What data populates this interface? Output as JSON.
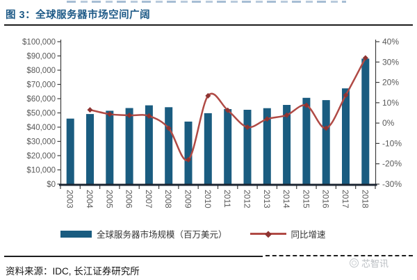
{
  "page": {
    "title": "图 3：全球服务器市场空间广阔",
    "source": "资料来源：IDC, 长江证券研究所",
    "watermark": "芯智讯"
  },
  "legend": {
    "bar_label": "全球服务器市场规模（百万美元）",
    "line_label": "同比增速"
  },
  "chart_data": {
    "type": "combo-bar-line",
    "title": "全球服务器市场空间广阔",
    "categories": [
      "2003",
      "2004",
      "2005",
      "2006",
      "2007",
      "2008",
      "2009",
      "2010",
      "2011",
      "2012",
      "2013",
      "2014",
      "2015",
      "2016",
      "2017",
      "2018"
    ],
    "series": [
      {
        "name": "全球服务器市场规模（百万美元）",
        "type": "bar",
        "axis": "left",
        "unit": "百万美元",
        "values": [
          46000,
          49200,
          51500,
          53400,
          55300,
          54000,
          43900,
          49800,
          52700,
          52200,
          53300,
          55600,
          60600,
          59000,
          67200,
          88100
        ]
      },
      {
        "name": "同比增速",
        "type": "line",
        "axis": "right",
        "unit": "%",
        "values": [
          null,
          6.5,
          4.4,
          3.8,
          3.5,
          -2.5,
          -18.0,
          13.4,
          6.3,
          -2.0,
          2.0,
          3.9,
          8.7,
          -2.5,
          13.7,
          32.0
        ]
      }
    ],
    "left_axis": {
      "min": 0,
      "max": 100000,
      "tick_labels_top_to_bottom": [
        "$100,000",
        "$90,000",
        "$80,000",
        "$70,000",
        "$60,000",
        "$50,000",
        "$40,000",
        "$30,000",
        "$20,000",
        "$10,000",
        "$0"
      ]
    },
    "right_axis": {
      "min": -30,
      "max": 40,
      "tick_labels_top_to_bottom": [
        "40%",
        "30%",
        "20%",
        "10%",
        "0%",
        "-10%",
        "-20%",
        "-30%"
      ]
    },
    "grid": false,
    "legend_position": "bottom",
    "colors": {
      "bar": "#1a5c80",
      "line": "#b04a45",
      "marker": "#8e3432",
      "baseline": "#1b2430",
      "axis": "#3d3d3d",
      "tick_label": "#595959",
      "title": "#1e5a87"
    }
  }
}
